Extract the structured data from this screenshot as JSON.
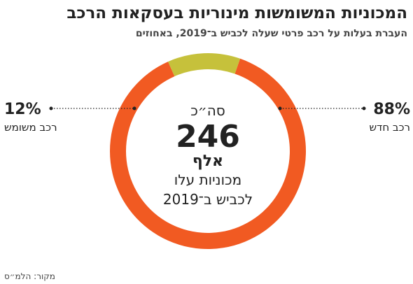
{
  "chart_data": {
    "type": "donut",
    "title": "המכוניות המשומשות מינוריות בעסקאות הרכב",
    "subtitle": "העברת בעלות על רכב פרטי שעלה לכביש ב־2019, באחוזים",
    "categories": [
      "רכב חדש",
      "רכב משומש"
    ],
    "values": [
      88,
      12
    ],
    "value_labels": [
      "88%",
      "12%"
    ],
    "colors": [
      "#f15a22",
      "#c6c13b"
    ],
    "center": {
      "top": "סה״כ",
      "value": 246,
      "unit": "אלף",
      "line1": "מכוניות עלו",
      "line2": "לכביש ב־2019"
    },
    "source": "מקור: הלמ״ס"
  }
}
